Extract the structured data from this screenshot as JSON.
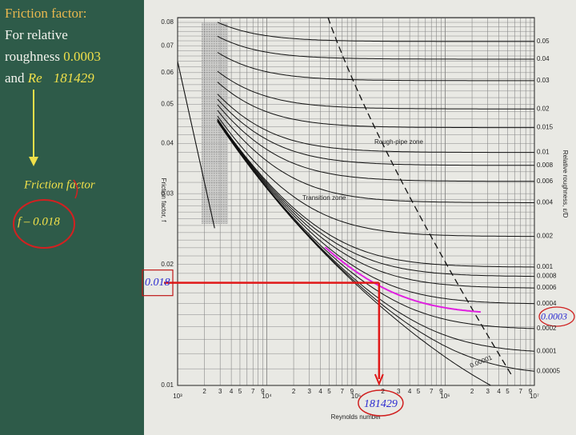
{
  "slide": {
    "title": "Friction factor:",
    "line1": "For relative",
    "line2_prefix": "roughness",
    "roughness_value": "0.0003",
    "line3_prefix": "and",
    "re_symbol": "Re",
    "re_value": "181429",
    "result_label": "Friction factor",
    "result_value": "f – 0.018"
  },
  "diagram": {
    "y_axis_title": "Friction factor, f",
    "x_axis_title": "Reynolds number",
    "right_axis_title": "Relative roughness, ε/D",
    "y_tick_labels": [
      "0.08",
      "0.07",
      "0.06",
      "0.05",
      "0.04",
      "0.03",
      "0.02",
      "0.01"
    ],
    "x_decade_labels": [
      "10³",
      "10⁴",
      "10⁵",
      "10⁶",
      "10⁷"
    ],
    "x_minor_labels": [
      "2",
      "3",
      "4",
      "5",
      "7",
      "9"
    ],
    "roughness_labels": [
      "0.05",
      "0.04",
      "0.03",
      "0.02",
      "0.015",
      "0.01",
      "0.008",
      "0.006",
      "0.004",
      "0.002",
      "0.001",
      "0.0008",
      "0.0006",
      "0.0004",
      "0.0002",
      "0.0001",
      "0.00005"
    ],
    "smooth_curve_label": "0.00001",
    "zone_labels": [
      "Rough-pipe zone",
      "Transition zone"
    ]
  },
  "annotations": {
    "friction": "0.018",
    "reynolds": "181429",
    "roughness": "0.0003"
  }
}
